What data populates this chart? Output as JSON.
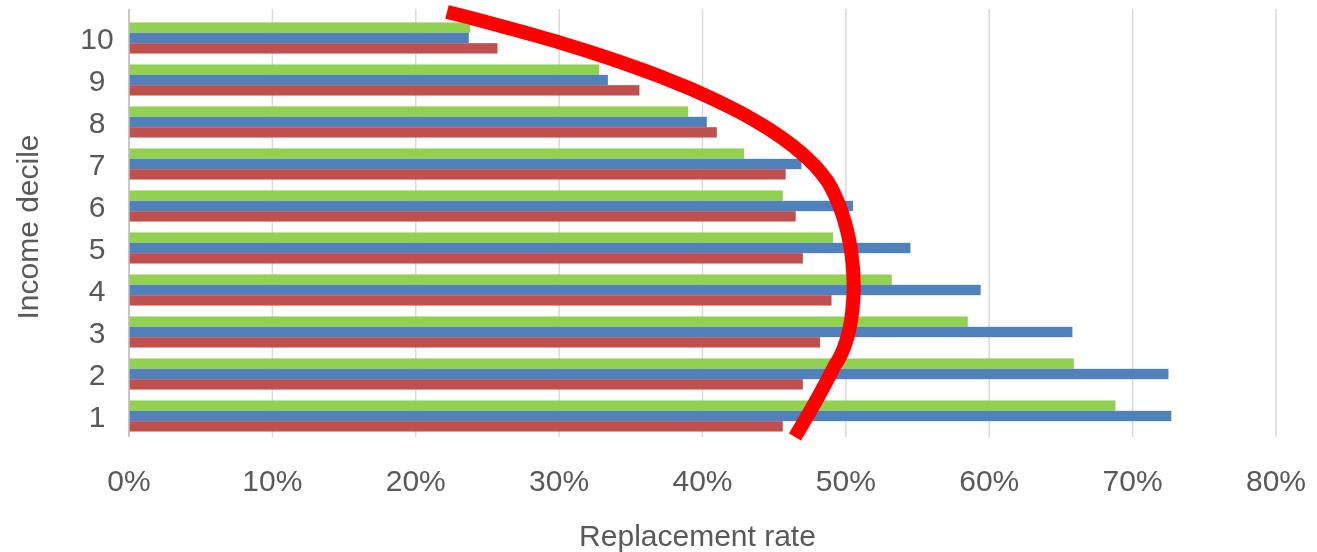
{
  "chart_data": {
    "type": "bar",
    "orientation": "horizontal",
    "xlabel": "Replacement rate",
    "ylabel": "Income decile",
    "categories": [
      "10",
      "9",
      "8",
      "7",
      "6",
      "5",
      "4",
      "3",
      "2",
      "1"
    ],
    "series": [
      {
        "color": "#92d050",
        "values": [
          23.8,
          32.8,
          39.0,
          42.9,
          45.6,
          49.1,
          53.2,
          58.5,
          65.9,
          68.8
        ]
      },
      {
        "color": "#4f81bd",
        "values": [
          23.7,
          33.4,
          40.3,
          46.9,
          50.5,
          54.5,
          59.4,
          65.8,
          72.5,
          72.7
        ]
      },
      {
        "color": "#c0504d",
        "values": [
          25.7,
          35.6,
          41.0,
          45.8,
          46.5,
          47.0,
          49.0,
          48.2,
          47.0,
          45.6
        ]
      }
    ],
    "xlim": [
      0,
      80
    ],
    "xticks": [
      {
        "value": 0,
        "label": "0%"
      },
      {
        "value": 10,
        "label": "10%"
      },
      {
        "value": 20,
        "label": "20%"
      },
      {
        "value": 30,
        "label": "30%"
      },
      {
        "value": 40,
        "label": "40%"
      },
      {
        "value": 50,
        "label": "50%"
      },
      {
        "value": 60,
        "label": "60%"
      },
      {
        "value": 70,
        "label": "70%"
      },
      {
        "value": 80,
        "label": "80%"
      }
    ],
    "grid": "x",
    "legend": false
  }
}
